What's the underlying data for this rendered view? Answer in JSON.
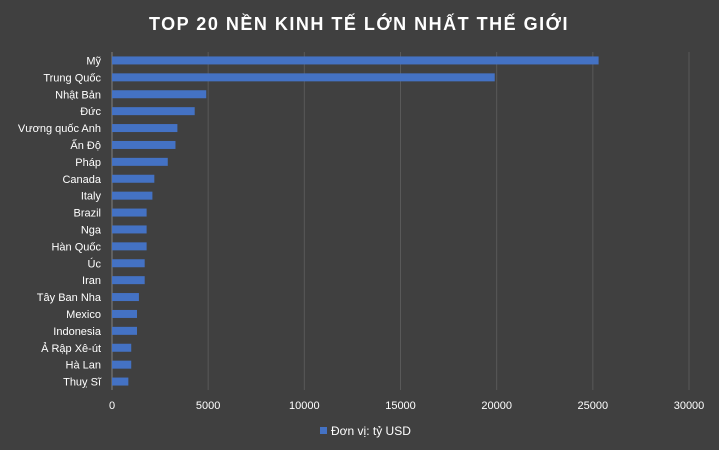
{
  "chart_data": {
    "type": "bar",
    "orientation": "horizontal",
    "title": "TOP 20 NỀN KINH TẾ LỚN NHẤT THẾ GIỚI",
    "categories": [
      "Mỹ",
      "Trung Quốc",
      "Nhật Bản",
      "Đức",
      "Vương quốc Anh",
      "Ấn Độ",
      "Pháp",
      "Canada",
      "Italy",
      "Brazil",
      "Nga",
      "Hàn Quốc",
      "Úc",
      "Iran",
      "Tây Ban Nha",
      "Mexico",
      "Indonesia",
      "Ả Rập Xê-út",
      "Hà Lan",
      "Thuỵ Sĩ"
    ],
    "series": [
      {
        "name": "Đơn vị: tỷ USD",
        "color": "#4472C4",
        "values": [
          25300,
          19900,
          4900,
          4300,
          3400,
          3300,
          2900,
          2200,
          2100,
          1800,
          1800,
          1800,
          1700,
          1700,
          1400,
          1300,
          1300,
          1000,
          1000,
          850
        ]
      }
    ],
    "xlim": [
      0,
      30000
    ],
    "xticks": [
      0,
      5000,
      10000,
      15000,
      20000,
      25000,
      30000
    ],
    "xtick_labels": [
      "0",
      "5000",
      "10000",
      "15000",
      "20000",
      "25000",
      "30000"
    ],
    "grid": "vertical",
    "legend_position": "bottom",
    "colors": {
      "background": "#404040",
      "bar": "#4472C4",
      "text": "#FFFFFF",
      "grid": "#595959"
    }
  }
}
